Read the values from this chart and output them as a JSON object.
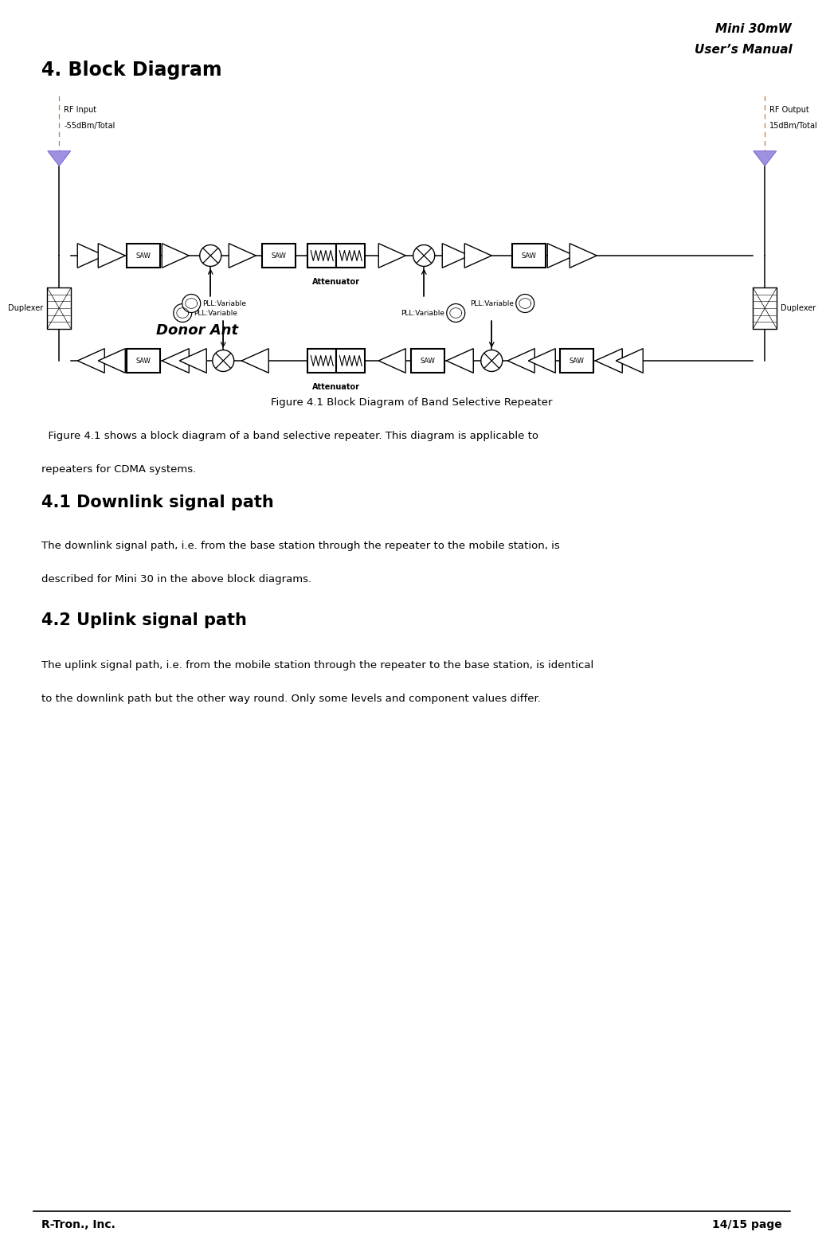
{
  "title_right_line1": "Mini 30mW",
  "title_right_line2": "User’s Manual",
  "section_title": "4. Block Diagram",
  "figure_caption": "Figure 4.1 Block Diagram of Band Selective Repeater",
  "para1_line1": "  Figure 4.1 shows a block diagram of a band selective repeater. This diagram is applicable to",
  "para1_line2": "repeaters for CDMA systems.",
  "section_41": "4.1 Downlink signal path",
  "para2_line1": "The downlink signal path, i.e. from the base station through the repeater to the mobile station, is",
  "para2_line2": "described for Mini 30 in the above block diagrams.",
  "section_42": "4.2 Uplink signal path",
  "para3_line1": "The uplink signal path, i.e. from the mobile station through the repeater to the base station, is identical",
  "para3_line2": "to the downlink path but the other way round. Only some levels and component values differ.",
  "footer_left": "R-Tron., Inc.",
  "footer_right": "14/15 page",
  "bg_color": "#ffffff",
  "text_color": "#000000",
  "rf_input_label1": "RF Input",
  "rf_input_label2": "-55dBm/Total",
  "rf_output_label1": "RF Output",
  "rf_output_label2": "15dBm/Total",
  "duplexer_label": "Duplexer",
  "donor_ant_label": "Donor Ant",
  "attenuator_label": "Attenuator",
  "pll_label": "PLL:Variable"
}
